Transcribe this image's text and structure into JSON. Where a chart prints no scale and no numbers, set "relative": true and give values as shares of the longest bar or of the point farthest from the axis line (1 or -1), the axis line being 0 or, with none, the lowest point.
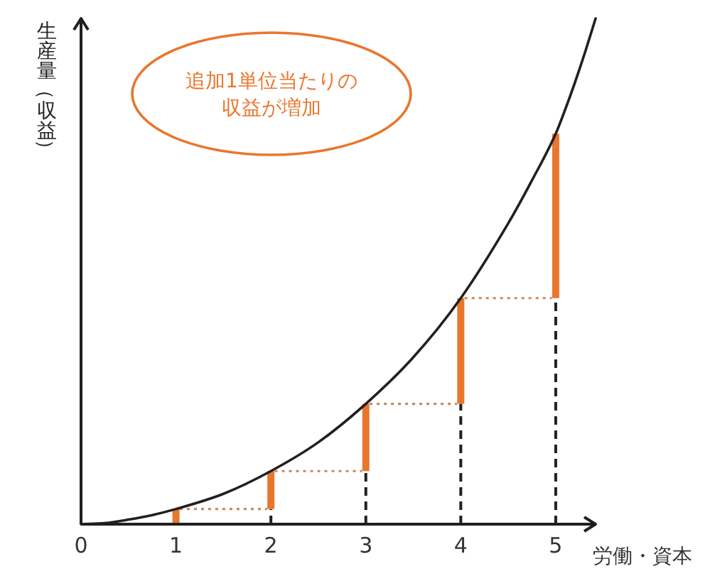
{
  "chart_data": {
    "type": "line",
    "relative": true,
    "xlabel": "労働・資本",
    "ylabel": "生産量（収益）",
    "xlim": [
      0,
      5.42
    ],
    "xticks": [
      0,
      1,
      2,
      3,
      4,
      5
    ],
    "annotations": [
      "追加1単位当たりの収益が増加"
    ],
    "series": [
      {
        "type": "line",
        "line_style": "dashed",
        "color": "#231f20",
        "x": [
          2,
          2
        ],
        "values": [
          0,
          0.03
        ]
      },
      {
        "type": "line",
        "line_style": "dashed",
        "color": "#231f20",
        "x": [
          3,
          3
        ],
        "values": [
          0,
          0.105
        ]
      },
      {
        "type": "line",
        "line_style": "dashed",
        "color": "#231f20",
        "x": [
          4,
          4
        ],
        "values": [
          0,
          0.238
        ]
      },
      {
        "type": "line",
        "line_style": "dashed",
        "color": "#231f20",
        "x": [
          5,
          5
        ],
        "values": [
          0,
          0.447
        ]
      },
      {
        "type": "line",
        "line_style": "dotted",
        "color": "#c98a5e",
        "x": [
          1.04,
          1.96
        ],
        "values": [
          0.03,
          0.03
        ]
      },
      {
        "type": "line",
        "line_style": "dotted",
        "color": "#c98a5e",
        "x": [
          2.04,
          2.96
        ],
        "values": [
          0.105,
          0.105
        ]
      },
      {
        "type": "line",
        "line_style": "dotted",
        "color": "#c98a5e",
        "x": [
          3.04,
          3.96
        ],
        "values": [
          0.238,
          0.238
        ]
      },
      {
        "type": "line",
        "line_style": "dotted",
        "color": "#c98a5e",
        "x": [
          4.04,
          4.96
        ],
        "values": [
          0.447,
          0.447
        ]
      },
      {
        "type": "line",
        "color": "#e8772e",
        "x": [
          1,
          1
        ],
        "values": [
          0,
          0.03
        ]
      },
      {
        "type": "line",
        "color": "#e8772e",
        "x": [
          2,
          2
        ],
        "values": [
          0.03,
          0.105
        ]
      },
      {
        "type": "line",
        "color": "#e8772e",
        "x": [
          3,
          3
        ],
        "values": [
          0.105,
          0.238
        ]
      },
      {
        "type": "line",
        "color": "#e8772e",
        "x": [
          4,
          4
        ],
        "values": [
          0.238,
          0.447
        ]
      },
      {
        "type": "line",
        "color": "#e8772e",
        "x": [
          5,
          5
        ],
        "values": [
          0.447,
          0.772
        ]
      },
      {
        "color": "#231f20",
        "x": [
          0,
          0.25,
          0.5,
          0.75,
          1,
          1.5,
          2,
          2.5,
          3,
          3.5,
          4,
          4.5,
          4.75,
          5,
          5.1,
          5.2,
          5.3,
          5.42
        ],
        "values": [
          0,
          0.002,
          0.009,
          0.018,
          0.03,
          0.06,
          0.105,
          0.162,
          0.238,
          0.33,
          0.447,
          0.595,
          0.68,
          0.772,
          0.82,
          0.872,
          0.928,
          1
        ]
      }
    ]
  }
}
